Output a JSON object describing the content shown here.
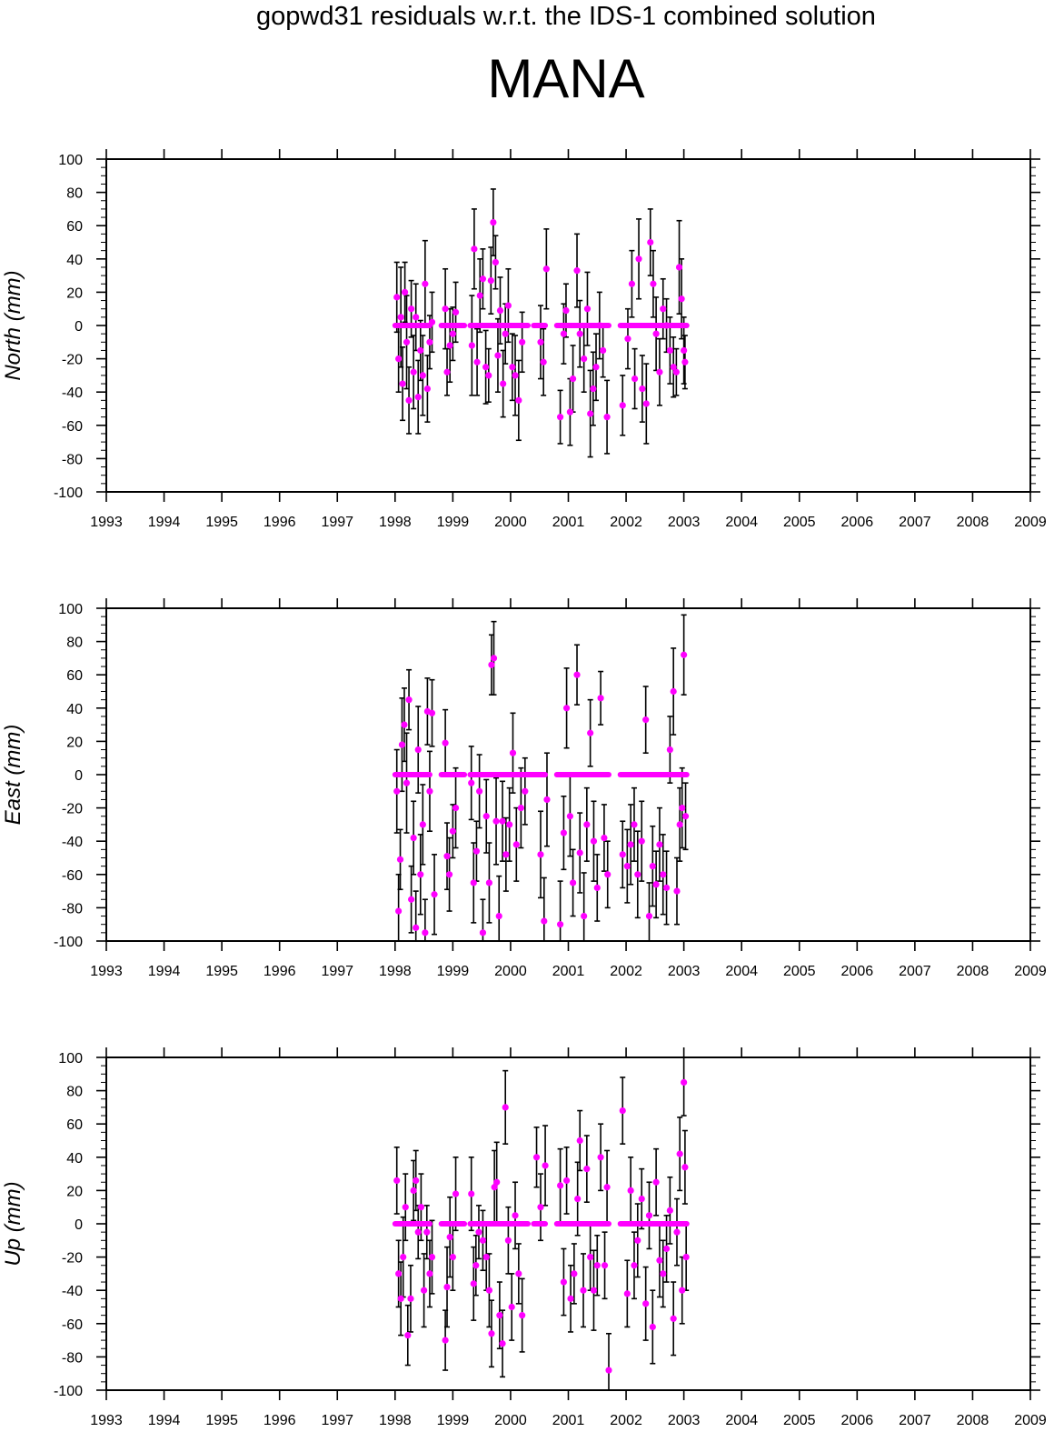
{
  "title": "gopwd31 residuals w.r.t. the IDS-1 combined solution",
  "subtitle": "MANA",
  "colors": {
    "points": "#ff00ff",
    "error_bars": "#000000",
    "frame": "#000000"
  },
  "chart_data": [
    {
      "type": "scatter",
      "name": "north",
      "ylabel": "North (mm)",
      "xlim": [
        1993,
        2009
      ],
      "ylim": [
        -100,
        100
      ],
      "x_ticks": [
        "1993",
        "1994",
        "1995",
        "1996",
        "1997",
        "1998",
        "1999",
        "2000",
        "2001",
        "2002",
        "2003",
        "2004",
        "2005",
        "2006",
        "2007",
        "2008",
        "2009"
      ],
      "y_ticks": [
        "100",
        "80",
        "60",
        "40",
        "20",
        "0",
        "-20",
        "-40",
        "-60",
        "-80",
        "-100"
      ],
      "zero_segments": [
        [
          1998.0,
          1998.6
        ],
        [
          1998.8,
          1999.2
        ],
        [
          1999.3,
          2000.3
        ],
        [
          2000.4,
          2000.6
        ],
        [
          2000.8,
          2001.7
        ],
        [
          2001.9,
          2003.05
        ]
      ],
      "points": [
        [
          1998.03,
          17,
          21
        ],
        [
          1998.06,
          -20,
          20
        ],
        [
          1998.1,
          5,
          30
        ],
        [
          1998.13,
          -35,
          22
        ],
        [
          1998.17,
          20,
          18
        ],
        [
          1998.2,
          -10,
          28
        ],
        [
          1998.24,
          -45,
          20
        ],
        [
          1998.28,
          10,
          17
        ],
        [
          1998.32,
          -28,
          22
        ],
        [
          1998.36,
          5,
          20
        ],
        [
          1998.4,
          -43,
          22
        ],
        [
          1998.44,
          -15,
          18
        ],
        [
          1998.48,
          -30,
          24
        ],
        [
          1998.52,
          25,
          26
        ],
        [
          1998.56,
          -38,
          20
        ],
        [
          1998.6,
          -10,
          16
        ],
        [
          1998.64,
          2,
          18
        ],
        [
          1998.87,
          10,
          24
        ],
        [
          1998.9,
          -28,
          14
        ],
        [
          1998.95,
          -12,
          22
        ],
        [
          1999.0,
          -5,
          16
        ],
        [
          1999.05,
          8,
          18
        ],
        [
          1999.33,
          -12,
          30
        ],
        [
          1999.37,
          46,
          24
        ],
        [
          1999.42,
          -22,
          20
        ],
        [
          1999.47,
          18,
          22
        ],
        [
          1999.52,
          28,
          18
        ],
        [
          1999.57,
          -25,
          22
        ],
        [
          1999.62,
          -30,
          16
        ],
        [
          1999.66,
          27,
          20
        ],
        [
          1999.7,
          62,
          20
        ],
        [
          1999.74,
          38,
          16
        ],
        [
          1999.78,
          -18,
          22
        ],
        [
          1999.82,
          9,
          20
        ],
        [
          1999.87,
          -35,
          20
        ],
        [
          1999.91,
          -5,
          18
        ],
        [
          1999.96,
          12,
          22
        ],
        [
          2000.03,
          -25,
          20
        ],
        [
          2000.08,
          -30,
          24
        ],
        [
          2000.14,
          -45,
          24
        ],
        [
          2000.2,
          -10,
          18
        ],
        [
          2000.52,
          -10,
          22
        ],
        [
          2000.57,
          -22,
          20
        ],
        [
          2000.62,
          34,
          24
        ],
        [
          2000.86,
          -55,
          16
        ],
        [
          2000.92,
          -5,
          18
        ],
        [
          2000.96,
          9,
          16
        ],
        [
          2001.03,
          -52,
          20
        ],
        [
          2001.08,
          -32,
          20
        ],
        [
          2001.15,
          33,
          22
        ],
        [
          2001.2,
          -5,
          20
        ],
        [
          2001.27,
          -20,
          20
        ],
        [
          2001.33,
          10,
          22
        ],
        [
          2001.38,
          -53,
          26
        ],
        [
          2001.43,
          -38,
          22
        ],
        [
          2001.48,
          -25,
          20
        ],
        [
          2001.54,
          0,
          20
        ],
        [
          2001.6,
          -15,
          16
        ],
        [
          2001.67,
          -55,
          22
        ],
        [
          2001.94,
          -48,
          18
        ],
        [
          2002.03,
          -8,
          18
        ],
        [
          2002.1,
          25,
          20
        ],
        [
          2002.15,
          -32,
          18
        ],
        [
          2002.22,
          40,
          24
        ],
        [
          2002.28,
          -38,
          20
        ],
        [
          2002.35,
          -47,
          24
        ],
        [
          2002.42,
          50,
          20
        ],
        [
          2002.47,
          25,
          20
        ],
        [
          2002.52,
          -5,
          22
        ],
        [
          2002.58,
          -28,
          20
        ],
        [
          2002.64,
          10,
          18
        ],
        [
          2002.7,
          0,
          16
        ],
        [
          2002.76,
          -15,
          20
        ],
        [
          2002.82,
          -25,
          18
        ],
        [
          2002.87,
          -28,
          14
        ],
        [
          2002.92,
          35,
          28
        ],
        [
          2002.96,
          16,
          24
        ],
        [
          2003.0,
          -15,
          20
        ],
        [
          2003.02,
          -22,
          16
        ]
      ]
    },
    {
      "type": "scatter",
      "name": "east",
      "ylabel": "East (mm)",
      "xlim": [
        1993,
        2009
      ],
      "ylim": [
        -100,
        100
      ],
      "x_ticks": [
        "1993",
        "1994",
        "1995",
        "1996",
        "1997",
        "1998",
        "1999",
        "2000",
        "2001",
        "2002",
        "2003",
        "2004",
        "2005",
        "2006",
        "2007",
        "2008",
        "2009"
      ],
      "y_ticks": [
        "100",
        "80",
        "60",
        "40",
        "20",
        "0",
        "-20",
        "-40",
        "-60",
        "-80",
        "-100"
      ],
      "zero_segments": [
        [
          1998.0,
          1998.6
        ],
        [
          1998.8,
          1999.2
        ],
        [
          1999.3,
          2000.6
        ],
        [
          2000.8,
          2001.7
        ],
        [
          2001.9,
          2003.05
        ]
      ],
      "points": [
        [
          1998.03,
          -10,
          25
        ],
        [
          1998.06,
          -82,
          22
        ],
        [
          1998.09,
          -51,
          18
        ],
        [
          1998.12,
          18,
          28
        ],
        [
          1998.16,
          30,
          22
        ],
        [
          1998.2,
          -5,
          30
        ],
        [
          1998.24,
          45,
          18
        ],
        [
          1998.28,
          -75,
          20
        ],
        [
          1998.32,
          -38,
          22
        ],
        [
          1998.36,
          -92,
          22
        ],
        [
          1998.4,
          15,
          26
        ],
        [
          1998.44,
          -60,
          24
        ],
        [
          1998.48,
          -30,
          24
        ],
        [
          1998.52,
          -95,
          20
        ],
        [
          1998.56,
          38,
          20
        ],
        [
          1998.6,
          -10,
          24
        ],
        [
          1998.64,
          37,
          20
        ],
        [
          1998.68,
          -72,
          24
        ],
        [
          1998.87,
          19,
          20
        ],
        [
          1998.9,
          -49,
          20
        ],
        [
          1998.94,
          -60,
          22
        ],
        [
          1999.0,
          -34,
          16
        ],
        [
          1999.05,
          -20,
          24
        ],
        [
          1999.32,
          -5,
          22
        ],
        [
          1999.36,
          -65,
          24
        ],
        [
          1999.41,
          -46,
          18
        ],
        [
          1999.46,
          -10,
          22
        ],
        [
          1999.52,
          -95,
          20
        ],
        [
          1999.58,
          -25,
          22
        ],
        [
          1999.63,
          -65,
          24
        ],
        [
          1999.67,
          66,
          18
        ],
        [
          1999.71,
          70,
          22
        ],
        [
          1999.75,
          -28,
          26
        ],
        [
          1999.8,
          -85,
          24
        ],
        [
          1999.86,
          -28,
          24
        ],
        [
          1999.92,
          -48,
          22
        ],
        [
          1999.98,
          -30,
          22
        ],
        [
          2000.04,
          13,
          24
        ],
        [
          2000.1,
          -42,
          22
        ],
        [
          2000.18,
          -20,
          24
        ],
        [
          2000.25,
          -10,
          20
        ],
        [
          2000.52,
          -48,
          26
        ],
        [
          2000.58,
          -88,
          26
        ],
        [
          2000.63,
          -15,
          28
        ],
        [
          2000.86,
          -90,
          26
        ],
        [
          2000.92,
          -35,
          22
        ],
        [
          2000.97,
          40,
          24
        ],
        [
          2001.03,
          -25,
          24
        ],
        [
          2001.08,
          -65,
          20
        ],
        [
          2001.15,
          60,
          18
        ],
        [
          2001.2,
          -47,
          24
        ],
        [
          2001.27,
          -85,
          26
        ],
        [
          2001.32,
          -30,
          22
        ],
        [
          2001.38,
          25,
          20
        ],
        [
          2001.44,
          -40,
          24
        ],
        [
          2001.5,
          -68,
          20
        ],
        [
          2001.56,
          46,
          16
        ],
        [
          2001.62,
          -38,
          20
        ],
        [
          2001.68,
          -60,
          20
        ],
        [
          2001.94,
          -48,
          20
        ],
        [
          2002.02,
          -55,
          22
        ],
        [
          2002.08,
          -42,
          24
        ],
        [
          2002.14,
          -30,
          22
        ],
        [
          2002.2,
          -60,
          26
        ],
        [
          2002.27,
          -40,
          24
        ],
        [
          2002.34,
          33,
          20
        ],
        [
          2002.4,
          -85,
          20
        ],
        [
          2002.46,
          -55,
          24
        ],
        [
          2002.52,
          -66,
          20
        ],
        [
          2002.58,
          -42,
          22
        ],
        [
          2002.64,
          -60,
          24
        ],
        [
          2002.7,
          -68,
          22
        ],
        [
          2002.76,
          15,
          20
        ],
        [
          2002.82,
          50,
          26
        ],
        [
          2002.88,
          -70,
          20
        ],
        [
          2002.93,
          -30,
          22
        ],
        [
          2002.97,
          -20,
          24
        ],
        [
          2003.0,
          72,
          24
        ],
        [
          2003.03,
          -25,
          20
        ]
      ]
    },
    {
      "type": "scatter",
      "name": "up",
      "ylabel": "Up (mm)",
      "xlim": [
        1993,
        2009
      ],
      "ylim": [
        -100,
        100
      ],
      "x_ticks": [
        "1993",
        "1994",
        "1995",
        "1996",
        "1997",
        "1998",
        "1999",
        "2000",
        "2001",
        "2002",
        "2003",
        "2004",
        "2005",
        "2006",
        "2007",
        "2008",
        "2009"
      ],
      "y_ticks": [
        "100",
        "80",
        "60",
        "40",
        "20",
        "0",
        "-20",
        "-40",
        "-60",
        "-80",
        "-100"
      ],
      "zero_segments": [
        [
          1998.0,
          1998.6
        ],
        [
          1998.8,
          1999.2
        ],
        [
          1999.3,
          2000.3
        ],
        [
          2000.4,
          2000.6
        ],
        [
          2000.8,
          2001.7
        ],
        [
          2001.9,
          2003.05
        ]
      ],
      "points": [
        [
          1998.03,
          26,
          20
        ],
        [
          1998.06,
          -30,
          20
        ],
        [
          1998.1,
          -45,
          22
        ],
        [
          1998.14,
          -20,
          24
        ],
        [
          1998.18,
          10,
          20
        ],
        [
          1998.22,
          -67,
          18
        ],
        [
          1998.27,
          -45,
          20
        ],
        [
          1998.32,
          20,
          18
        ],
        [
          1998.36,
          26,
          18
        ],
        [
          1998.4,
          -5,
          16
        ],
        [
          1998.45,
          10,
          20
        ],
        [
          1998.5,
          -40,
          22
        ],
        [
          1998.55,
          -5,
          16
        ],
        [
          1998.6,
          -30,
          20
        ],
        [
          1998.64,
          -20,
          22
        ],
        [
          1998.87,
          -70,
          18
        ],
        [
          1998.9,
          -38,
          24
        ],
        [
          1998.95,
          -8,
          24
        ],
        [
          1999.0,
          -20,
          20
        ],
        [
          1999.05,
          18,
          22
        ],
        [
          1999.32,
          18,
          22
        ],
        [
          1999.36,
          -36,
          22
        ],
        [
          1999.4,
          -25,
          18
        ],
        [
          1999.45,
          -5,
          16
        ],
        [
          1999.52,
          -10,
          18
        ],
        [
          1999.58,
          -20,
          20
        ],
        [
          1999.63,
          -40,
          22
        ],
        [
          1999.67,
          -66,
          20
        ],
        [
          1999.72,
          22,
          22
        ],
        [
          1999.76,
          25,
          24
        ],
        [
          1999.81,
          -55,
          20
        ],
        [
          1999.86,
          -72,
          20
        ],
        [
          1999.91,
          70,
          22
        ],
        [
          1999.96,
          -10,
          20
        ],
        [
          2000.02,
          -50,
          20
        ],
        [
          2000.08,
          5,
          20
        ],
        [
          2000.14,
          -30,
          18
        ],
        [
          2000.2,
          -55,
          22
        ],
        [
          2000.45,
          40,
          18
        ],
        [
          2000.52,
          10,
          20
        ],
        [
          2000.6,
          35,
          24
        ],
        [
          2000.86,
          23,
          22
        ],
        [
          2000.92,
          -35,
          20
        ],
        [
          2000.97,
          26,
          20
        ],
        [
          2001.04,
          -45,
          20
        ],
        [
          2001.1,
          -30,
          18
        ],
        [
          2001.16,
          15,
          22
        ],
        [
          2001.2,
          50,
          18
        ],
        [
          2001.26,
          -40,
          22
        ],
        [
          2001.32,
          33,
          20
        ],
        [
          2001.38,
          -20,
          20
        ],
        [
          2001.44,
          -40,
          24
        ],
        [
          2001.5,
          -25,
          18
        ],
        [
          2001.56,
          40,
          20
        ],
        [
          2001.63,
          -25,
          20
        ],
        [
          2001.67,
          22,
          22
        ],
        [
          2001.7,
          -88,
          22
        ],
        [
          2001.94,
          68,
          20
        ],
        [
          2002.02,
          -42,
          20
        ],
        [
          2002.08,
          20,
          20
        ],
        [
          2002.14,
          -25,
          20
        ],
        [
          2002.2,
          -10,
          22
        ],
        [
          2002.27,
          15,
          18
        ],
        [
          2002.34,
          -48,
          22
        ],
        [
          2002.4,
          5,
          20
        ],
        [
          2002.46,
          -62,
          22
        ],
        [
          2002.52,
          25,
          20
        ],
        [
          2002.58,
          -22,
          22
        ],
        [
          2002.64,
          -30,
          20
        ],
        [
          2002.7,
          -15,
          20
        ],
        [
          2002.76,
          8,
          20
        ],
        [
          2002.82,
          -57,
          22
        ],
        [
          2002.88,
          -5,
          20
        ],
        [
          2002.93,
          42,
          22
        ],
        [
          2002.97,
          -40,
          20
        ],
        [
          2003.0,
          85,
          20
        ],
        [
          2003.02,
          34,
          22
        ],
        [
          2003.04,
          -20,
          20
        ]
      ]
    }
  ]
}
